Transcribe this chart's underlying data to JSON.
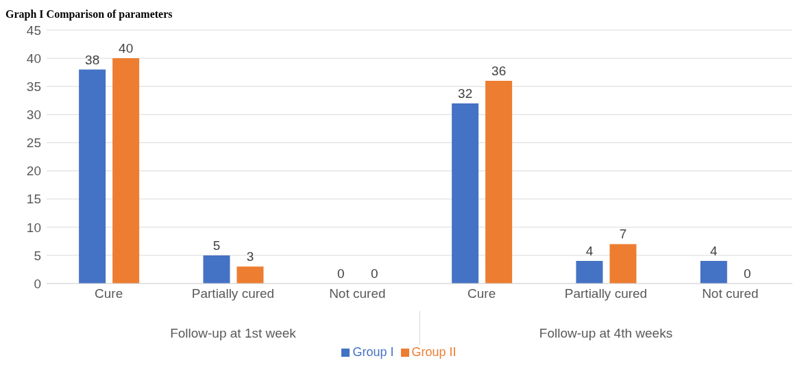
{
  "chart_data": {
    "type": "bar",
    "title": "Graph I Comparison of parameters",
    "categories": [
      "Cure",
      "Partially cured",
      "Not cured",
      "Cure",
      "Partially cured",
      "Not cured"
    ],
    "annotations": [
      "Follow-up at 1st week",
      "Follow-up at 4th weeks"
    ],
    "series": [
      {
        "name": "Group I",
        "color": "#4472c4",
        "values": [
          38,
          5,
          0,
          32,
          4,
          4
        ]
      },
      {
        "name": "Group II",
        "color": "#ed7d31",
        "values": [
          40,
          3,
          0,
          36,
          7,
          0
        ]
      }
    ],
    "ylim": [
      0,
      45
    ],
    "yticks": [
      0,
      5,
      10,
      15,
      20,
      25,
      30,
      35,
      40,
      45
    ],
    "grid": "y",
    "data_labels": true,
    "legend": "bottom"
  }
}
